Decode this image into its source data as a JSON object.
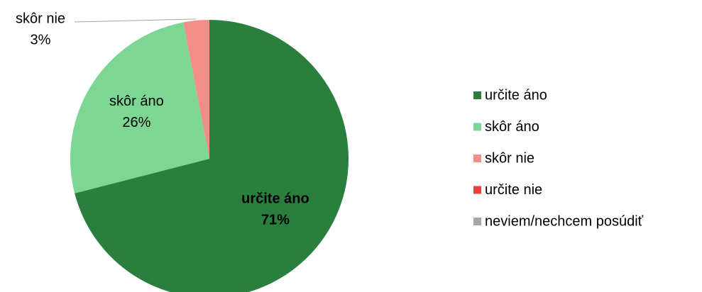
{
  "chart_data": {
    "type": "pie",
    "categories": [
      "určite áno",
      "skôr áno",
      "skôr nie",
      "určite nie",
      "neviem/nechcem posúdiť"
    ],
    "values": [
      71,
      26,
      3,
      0,
      0
    ],
    "value_labels": [
      "71%",
      "26%",
      "3%",
      null,
      null
    ],
    "colors": [
      "#2a7f3f",
      "#7dd694",
      "#f28e86",
      "#e8413c",
      "#a6a6a6"
    ],
    "legend": "right"
  }
}
